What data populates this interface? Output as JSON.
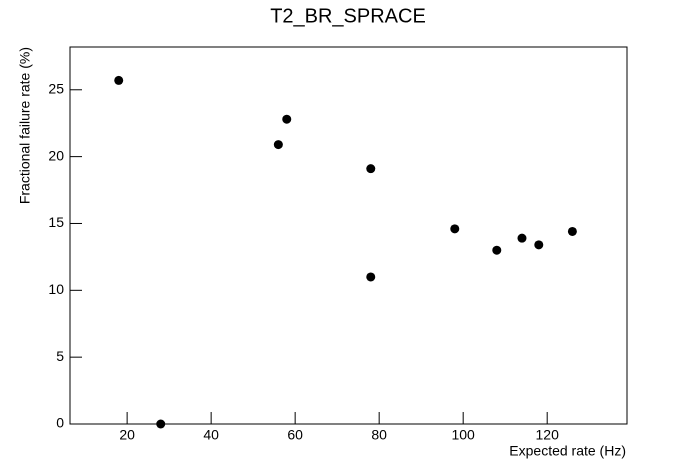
{
  "chart_data": {
    "type": "scatter",
    "title": "T2_BR_SPRACE",
    "x_label": "Expected rate (Hz)",
    "y_label": "Fractional failure rate (%)",
    "x": [
      18,
      28,
      56,
      58,
      78,
      78,
      98,
      108,
      114,
      118,
      126
    ],
    "values": [
      25.7,
      0,
      20.9,
      22.8,
      19.1,
      11.0,
      14.6,
      13.0,
      13.9,
      13.4,
      14.4
    ],
    "color": "#000000",
    "xlim": [
      6.4,
      139
    ],
    "ylim": [
      0,
      28.2
    ],
    "xticks": [
      20,
      40,
      60,
      80,
      100,
      120
    ],
    "yticks": [
      0,
      5,
      10,
      15,
      20,
      25
    ],
    "grid": false
  }
}
